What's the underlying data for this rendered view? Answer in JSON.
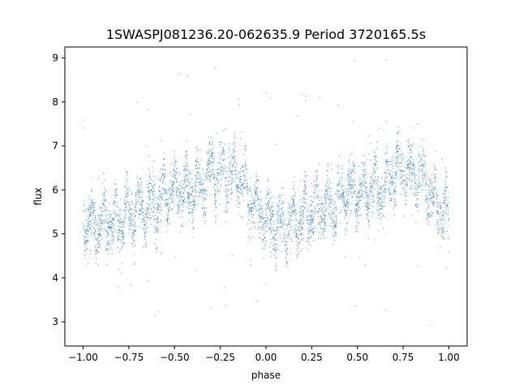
{
  "chart_data": {
    "type": "scatter",
    "title": "1SWASPJ081236.20-062635.9 Period 3720165.5s",
    "xlabel": "phase",
    "ylabel": "flux",
    "xlim": [
      -1.1,
      1.1
    ],
    "ylim": [
      2.45,
      9.25
    ],
    "x_ticks": [
      -1.0,
      -0.75,
      -0.5,
      -0.25,
      0.0,
      0.25,
      0.5,
      0.75,
      1.0
    ],
    "x_tick_labels": [
      "−1.00",
      "−0.75",
      "−0.50",
      "−0.25",
      "0.00",
      "0.25",
      "0.50",
      "0.75",
      "1.00"
    ],
    "y_ticks": [
      3,
      4,
      5,
      6,
      7,
      8,
      9
    ],
    "y_tick_labels": [
      "3",
      "4",
      "5",
      "6",
      "7",
      "8",
      "9"
    ],
    "grid": false,
    "legend": "none",
    "series_color": "#1f77b4",
    "x_range": [
      -1.0,
      1.0
    ],
    "folded": true,
    "profile": {
      "phase": [
        0.0,
        0.05,
        0.1,
        0.15,
        0.2,
        0.25,
        0.3,
        0.35,
        0.4,
        0.45,
        0.5,
        0.55,
        0.6,
        0.65,
        0.7,
        0.75,
        0.8,
        0.85,
        0.9,
        0.95,
        1.0
      ],
      "flux": [
        5.3,
        5.2,
        5.2,
        5.3,
        5.35,
        5.5,
        5.6,
        5.6,
        5.7,
        6.0,
        6.0,
        5.95,
        6.0,
        6.1,
        6.4,
        6.4,
        6.35,
        6.3,
        5.9,
        5.6,
        5.4
      ]
    }
  }
}
